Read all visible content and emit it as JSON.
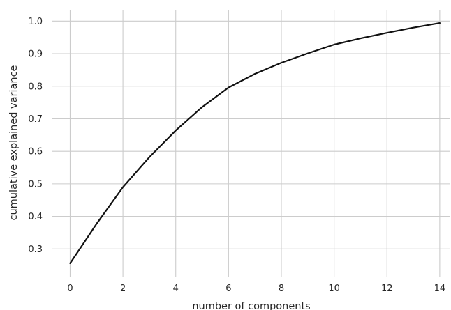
{
  "chart_data": {
    "type": "line",
    "title": "",
    "xlabel": "number of components",
    "ylabel": "cumulative explained variance",
    "xlim": [
      -0.7,
      14.4
    ],
    "ylim": [
      0.215,
      1.035
    ],
    "xticks": [
      0,
      2,
      4,
      6,
      8,
      10,
      12,
      14
    ],
    "yticks": [
      0.3,
      0.4,
      0.5,
      0.6,
      0.7,
      0.8,
      0.9,
      1.0
    ],
    "xtick_labels": [
      "0",
      "2",
      "4",
      "6",
      "8",
      "10",
      "12",
      "14"
    ],
    "ytick_labels": [
      "0.3",
      "0.4",
      "0.5",
      "0.6",
      "0.7",
      "0.8",
      "0.9",
      "1.0"
    ],
    "grid": true,
    "line_color": "#111111",
    "grid_color": "#cccccc",
    "series": [
      {
        "x": [
          0,
          1,
          2,
          3,
          4,
          5,
          6,
          7,
          8,
          9,
          10,
          11,
          12,
          13,
          14
        ],
        "values": [
          0.256,
          0.377,
          0.49,
          0.582,
          0.664,
          0.736,
          0.796,
          0.838,
          0.872,
          0.901,
          0.928,
          0.947,
          0.964,
          0.98,
          0.994
        ]
      }
    ]
  }
}
